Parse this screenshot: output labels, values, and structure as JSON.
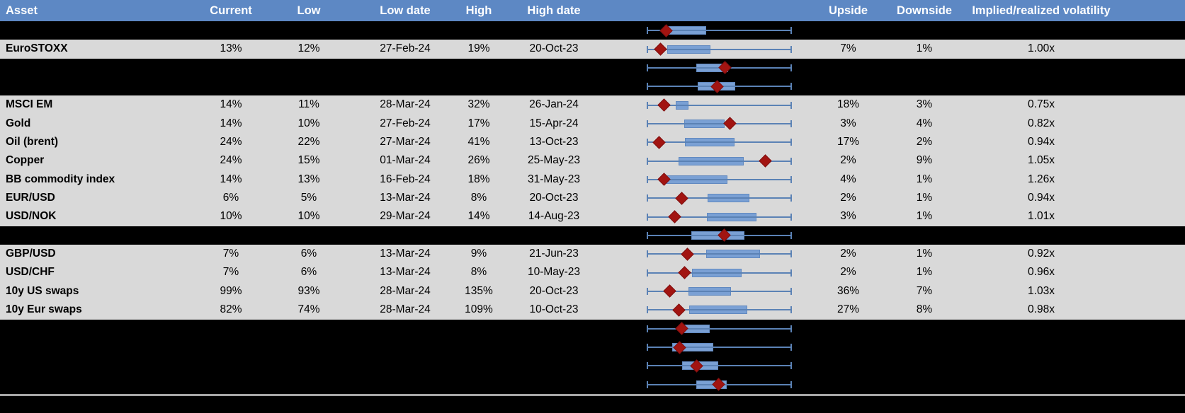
{
  "header": {
    "columns": [
      "Asset",
      "Current",
      "Low",
      "Low date",
      "High",
      "High date",
      "Upside",
      "Downside",
      "Implied/realized volatility"
    ]
  },
  "rows": [
    {
      "hidden": true,
      "plot": {
        "box_start": 0.146,
        "box_end": 0.41,
        "diamond": 0.133
      }
    },
    {
      "hidden": false,
      "asset": "EuroSTOXX",
      "current": "13%",
      "low": "12%",
      "low_date": "27-Feb-24",
      "high": "19%",
      "high_date": "20-Oct-23",
      "upside": "7%",
      "downside": "1%",
      "implied_realized": "1.00x",
      "plot": {
        "box_start": 0.141,
        "box_end": 0.439,
        "diamond": 0.093
      }
    },
    {
      "hidden": true,
      "plot": {
        "box_start": 0.341,
        "box_end": 0.561,
        "diamond": 0.537
      }
    },
    {
      "hidden": true,
      "plot": {
        "box_start": 0.351,
        "box_end": 0.61,
        "diamond": 0.483
      }
    },
    {
      "hidden": false,
      "asset": "MSCI EM",
      "current": "14%",
      "low": "11%",
      "low_date": "28-Mar-24",
      "high": "32%",
      "high_date": "26-Jan-24",
      "upside": "18%",
      "downside": "3%",
      "implied_realized": "0.75x",
      "plot": {
        "box_start": 0.2,
        "box_end": 0.288,
        "diamond": 0.117
      }
    },
    {
      "hidden": false,
      "asset": "Gold",
      "current": "14%",
      "low": "10%",
      "low_date": "27-Feb-24",
      "high": "17%",
      "high_date": "15-Apr-24",
      "upside": "3%",
      "downside": "4%",
      "implied_realized": "0.82x",
      "plot": {
        "box_start": 0.259,
        "box_end": 0.537,
        "diamond": 0.571
      }
    },
    {
      "hidden": false,
      "asset": "Oil (brent)",
      "current": "24%",
      "low": "22%",
      "low_date": "27-Mar-24",
      "high": "41%",
      "high_date": "13-Oct-23",
      "upside": "17%",
      "downside": "2%",
      "implied_realized": "0.94x",
      "plot": {
        "box_start": 0.263,
        "box_end": 0.605,
        "diamond": 0.083
      }
    },
    {
      "hidden": false,
      "asset": "Copper",
      "current": "24%",
      "low": "15%",
      "low_date": "01-Mar-24",
      "high": "26%",
      "high_date": "25-May-23",
      "upside": "2%",
      "downside": "9%",
      "implied_realized": "1.05x",
      "plot": {
        "box_start": 0.22,
        "box_end": 0.668,
        "diamond": 0.815
      }
    },
    {
      "hidden": false,
      "asset": "BB commodity index",
      "current": "14%",
      "low": "13%",
      "low_date": "16-Feb-24",
      "high": "18%",
      "high_date": "31-May-23",
      "upside": "4%",
      "downside": "1%",
      "implied_realized": "1.26x",
      "plot": {
        "box_start": 0.132,
        "box_end": 0.556,
        "diamond": 0.117
      }
    },
    {
      "hidden": false,
      "asset": "EUR/USD",
      "current": "6%",
      "low": "5%",
      "low_date": "13-Mar-24",
      "high": "8%",
      "high_date": "20-Oct-23",
      "upside": "2%",
      "downside": "1%",
      "implied_realized": "0.94x",
      "plot": {
        "box_start": 0.42,
        "box_end": 0.707,
        "diamond": 0.239
      }
    },
    {
      "hidden": false,
      "asset": "USD/NOK",
      "current": "10%",
      "low": "10%",
      "low_date": "29-Mar-24",
      "high": "14%",
      "high_date": "14-Aug-23",
      "upside": "3%",
      "downside": "1%",
      "implied_realized": "1.01x",
      "plot": {
        "box_start": 0.415,
        "box_end": 0.756,
        "diamond": 0.19
      }
    },
    {
      "hidden": true,
      "plot": {
        "box_start": 0.307,
        "box_end": 0.673,
        "diamond": 0.532
      }
    },
    {
      "hidden": false,
      "asset": "GBP/USD",
      "current": "7%",
      "low": "6%",
      "low_date": "13-Mar-24",
      "high": "9%",
      "high_date": "21-Jun-23",
      "upside": "2%",
      "downside": "1%",
      "implied_realized": "0.92x",
      "plot": {
        "box_start": 0.41,
        "box_end": 0.78,
        "diamond": 0.278
      }
    },
    {
      "hidden": false,
      "asset": "USD/CHF",
      "current": "7%",
      "low": "6%",
      "low_date": "13-Mar-24",
      "high": "8%",
      "high_date": "10-May-23",
      "upside": "2%",
      "downside": "1%",
      "implied_realized": "0.96x",
      "plot": {
        "box_start": 0.312,
        "box_end": 0.654,
        "diamond": 0.263
      }
    },
    {
      "hidden": false,
      "asset": "10y US swaps",
      "current": "99%",
      "low": "93%",
      "low_date": "28-Mar-24",
      "high": "135%",
      "high_date": "20-Oct-23",
      "upside": "36%",
      "downside": "7%",
      "implied_realized": "1.03x",
      "plot": {
        "box_start": 0.288,
        "box_end": 0.58,
        "diamond": 0.156
      }
    },
    {
      "hidden": false,
      "asset": "10y Eur swaps",
      "current": "82%",
      "low": "74%",
      "low_date": "28-Mar-24",
      "high": "109%",
      "high_date": "10-Oct-23",
      "upside": "27%",
      "downside": "8%",
      "implied_realized": "0.98x",
      "plot": {
        "box_start": 0.293,
        "box_end": 0.693,
        "diamond": 0.22
      }
    },
    {
      "hidden": true,
      "plot": {
        "box_start": 0.259,
        "box_end": 0.434,
        "diamond": 0.239
      }
    },
    {
      "hidden": true,
      "plot": {
        "box_start": 0.176,
        "box_end": 0.459,
        "diamond": 0.229
      }
    },
    {
      "hidden": true,
      "plot": {
        "box_start": 0.244,
        "box_end": 0.493,
        "diamond": 0.346
      }
    },
    {
      "hidden": true,
      "plot": {
        "box_start": 0.341,
        "box_end": 0.551,
        "diamond": 0.493
      }
    }
  ],
  "chart_data": {
    "type": "boxplot",
    "orientation": "horizontal",
    "note": "One box-whisker per table row; whiskers span each asset's low-high volatility range normalized to 0-1; red diamond = current level; values below are fractions of the whisker span.",
    "categories": [
      "hidden-1",
      "EuroSTOXX",
      "hidden-2",
      "hidden-3",
      "MSCI EM",
      "Gold",
      "Oil (brent)",
      "Copper",
      "BB commodity index",
      "EUR/USD",
      "USD/NOK",
      "hidden-4",
      "GBP/USD",
      "USD/CHF",
      "10y US swaps",
      "10y Eur swaps",
      "hidden-5",
      "hidden-6",
      "hidden-7",
      "hidden-8"
    ],
    "whisker_min": 0.0,
    "whisker_max": 1.0,
    "box_start": [
      0.146,
      0.141,
      0.341,
      0.351,
      0.2,
      0.259,
      0.263,
      0.22,
      0.132,
      0.42,
      0.415,
      0.307,
      0.41,
      0.312,
      0.288,
      0.293,
      0.259,
      0.176,
      0.244,
      0.341
    ],
    "box_end": [
      0.41,
      0.439,
      0.561,
      0.61,
      0.288,
      0.537,
      0.605,
      0.668,
      0.556,
      0.707,
      0.756,
      0.673,
      0.78,
      0.654,
      0.58,
      0.693,
      0.434,
      0.459,
      0.493,
      0.551
    ],
    "diamond": [
      0.133,
      0.093,
      0.537,
      0.483,
      0.117,
      0.571,
      0.083,
      0.815,
      0.117,
      0.239,
      0.19,
      0.532,
      0.278,
      0.263,
      0.156,
      0.22,
      0.239,
      0.229,
      0.346,
      0.493
    ]
  },
  "colors": {
    "header_bg": "#5d88c4",
    "row_bg": "#d9d9d9",
    "hidden_bg": "#000000",
    "whisker": "#5b82b5",
    "box_fill": "#7aa0d4",
    "box_border": "#6189c0",
    "diamond": "#a21411",
    "divider": "#a6a6a6",
    "header_text": "#ffffff"
  }
}
